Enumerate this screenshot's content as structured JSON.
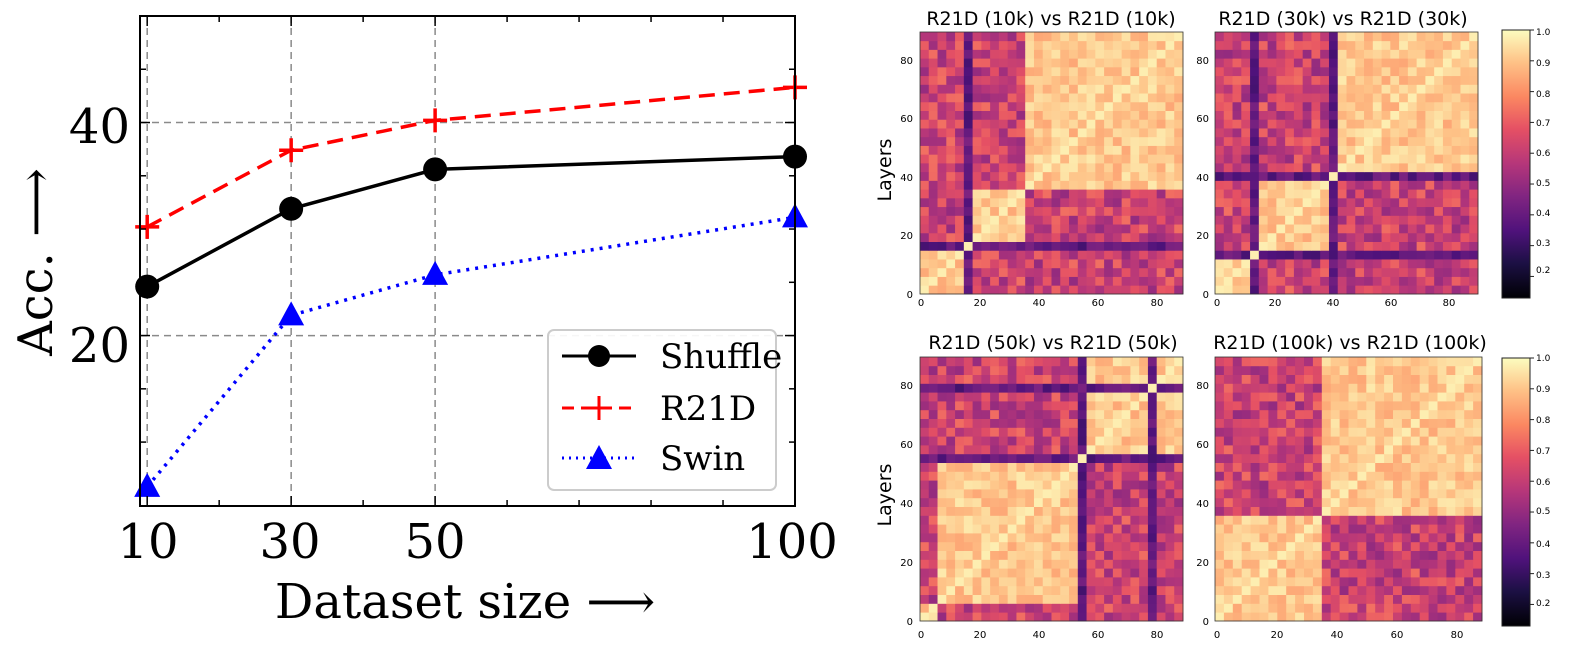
{
  "chart_data": [
    {
      "type": "line",
      "xlabel": "Dataset size ⟶",
      "ylabel": "Acc. ⟶",
      "x": [
        10,
        30,
        50,
        100
      ],
      "xticks": [
        "10",
        "30",
        "50",
        "100"
      ],
      "yticks": [
        "20",
        "40"
      ],
      "xlim": [
        9,
        100
      ],
      "ylim": [
        4,
        50
      ],
      "grid": true,
      "legend_position": "lower-right",
      "series": [
        {
          "name": "Shuffle",
          "values": [
            24.6,
            31.9,
            35.6,
            36.8
          ],
          "color": "#000000",
          "marker": "circle",
          "style": "solid"
        },
        {
          "name": "R21D",
          "values": [
            30.2,
            37.4,
            40.2,
            43.3
          ],
          "color": "#ff0000",
          "marker": "plus",
          "style": "dashed"
        },
        {
          "name": "Swin",
          "values": [
            5.8,
            21.9,
            25.7,
            31.1
          ],
          "color": "#0000ff",
          "marker": "triangle",
          "style": "dotted"
        }
      ]
    },
    {
      "type": "heatmap",
      "ylabel": "Layers",
      "xticks": [
        "0",
        "20",
        "40",
        "60",
        "80"
      ],
      "yticks": [
        "0",
        "20",
        "40",
        "60",
        "80"
      ],
      "colorbar_ticks": [
        "0.2",
        "0.3",
        "0.4",
        "0.5",
        "0.6",
        "0.7",
        "0.8",
        "0.9",
        "1.0"
      ],
      "colorbar_range": [
        0.13,
        1.0
      ],
      "panels": [
        {
          "title": "R21D (10k) vs R21D (10k)",
          "blocks": [
            0,
            17,
            36,
            91
          ],
          "dark_stripes": [
            15,
            16,
            17
          ],
          "light_stripes": []
        },
        {
          "title": "R21D (30k) vs R21D (30k)",
          "blocks": [
            0,
            14,
            38,
            91
          ],
          "dark_stripes": [
            13,
            14,
            39
          ],
          "light_stripes": []
        },
        {
          "title": "R21D (50k) vs R21D (50k)",
          "blocks": [
            0,
            5,
            55,
            58,
            91
          ],
          "dark_stripes": [
            54,
            55,
            56,
            78
          ],
          "light_stripes": []
        },
        {
          "title": "R21D (100k) vs R21D (100k)",
          "blocks": [
            0,
            36,
            91
          ],
          "dark_stripes": [],
          "light_stripes": []
        }
      ]
    }
  ]
}
